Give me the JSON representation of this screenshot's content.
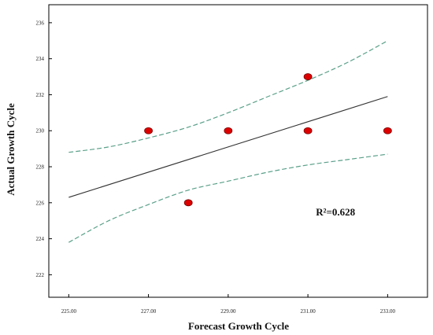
{
  "chart_data": {
    "type": "scatter",
    "xlabel": "Forecast Growth Cycle",
    "ylabel": "Actual Growth Cycle",
    "xlim": [
      224.5,
      234.0
    ],
    "ylim": [
      220.75,
      237.0
    ],
    "x_ticks": [
      225,
      227,
      229,
      231,
      233
    ],
    "x_tick_labels": [
      "225.00",
      "227.00",
      "229.00",
      "231.00",
      "233.00"
    ],
    "y_ticks": [
      222,
      224,
      226,
      228,
      230,
      232,
      234,
      236
    ],
    "y_tick_labels": [
      "222",
      "224",
      "226",
      "228",
      "230",
      "232",
      "234",
      "236"
    ],
    "grid": false,
    "points": {
      "x": [
        227,
        228,
        229,
        231,
        231,
        233
      ],
      "y": [
        230,
        226,
        230,
        233,
        230,
        230
      ],
      "color": "#dd0000"
    },
    "fit_line": {
      "x": [
        225,
        233
      ],
      "y": [
        226.3,
        231.9
      ],
      "color": "#333333"
    },
    "confidence_band": {
      "upper": {
        "x": [
          225,
          226,
          227,
          228,
          229,
          230,
          231,
          232,
          233
        ],
        "y": [
          228.8,
          229.1,
          229.6,
          230.2,
          231.0,
          231.9,
          232.8,
          233.8,
          235.0
        ]
      },
      "lower": {
        "x": [
          225,
          226,
          227,
          228,
          229,
          230,
          231,
          232,
          233
        ],
        "y": [
          223.8,
          225.0,
          225.9,
          226.7,
          227.2,
          227.7,
          228.1,
          228.4,
          228.7
        ]
      },
      "color": "#5aa08a"
    },
    "annotation": {
      "text": "R²=0.628",
      "x": 231.2,
      "y": 225.3
    }
  }
}
